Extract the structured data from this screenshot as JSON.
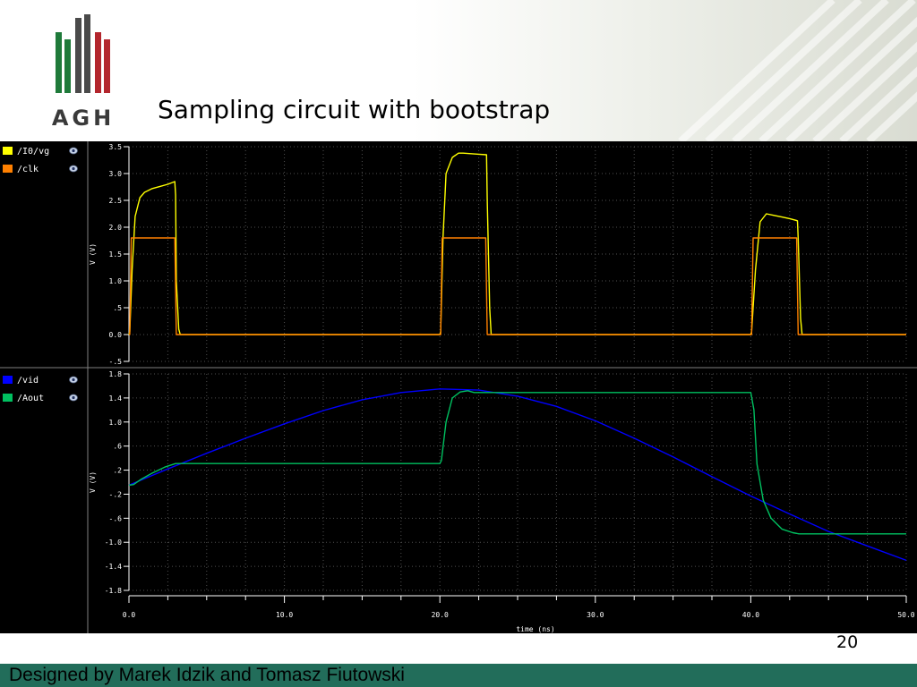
{
  "slide": {
    "title": "Sampling circuit with bootstrap",
    "logo_text": "AGH",
    "page_number": "20",
    "footer": "Designed by Marek Idzik and Tomasz Fiutowski"
  },
  "colors": {
    "logo_green": "#1f7a3a",
    "logo_gray": "#4a4a4a",
    "logo_red": "#b3262d",
    "footer": "#226d5a"
  },
  "chart_data": [
    {
      "type": "line",
      "ylabel": "V (V)",
      "ylim": [
        -0.5,
        3.5
      ],
      "yticks": [
        "3.5",
        "3.0",
        "2.5",
        "2.0",
        "1.5",
        "1.0",
        ".5",
        "0.0",
        "-.5"
      ],
      "ytick_values": [
        3.5,
        3.0,
        2.5,
        2.0,
        1.5,
        1.0,
        0.5,
        0.0,
        -0.5
      ],
      "xlim": [
        0,
        50
      ],
      "grid": true,
      "legend_placement": "left",
      "series": [
        {
          "name": "/I0/vg",
          "color": "#ffff00",
          "x": [
            0,
            0.05,
            0.2,
            0.4,
            0.7,
            1.0,
            1.5,
            2.0,
            2.5,
            2.95,
            3.0,
            3.05,
            3.2,
            3.3,
            20.0,
            20.05,
            20.2,
            20.4,
            20.8,
            21.2,
            21.5,
            22.0,
            22.5,
            23.0,
            23.05,
            23.2,
            23.3,
            40.0,
            40.05,
            40.3,
            40.6,
            41.0,
            41.5,
            42.0,
            42.5,
            43.0,
            43.05,
            43.2,
            43.3,
            50
          ],
          "y": [
            0.0,
            0.05,
            1.2,
            2.2,
            2.55,
            2.65,
            2.72,
            2.76,
            2.8,
            2.85,
            2.6,
            1.0,
            0.1,
            0.0,
            0.0,
            0.05,
            1.8,
            3.0,
            3.3,
            3.38,
            3.38,
            3.37,
            3.36,
            3.35,
            2.5,
            0.5,
            0.0,
            0.0,
            0.05,
            1.2,
            2.1,
            2.25,
            2.22,
            2.19,
            2.16,
            2.12,
            1.8,
            0.3,
            0.0,
            0.0
          ]
        },
        {
          "name": "/clk",
          "color": "#ff8000",
          "x": [
            0,
            0.05,
            0.15,
            2.95,
            3.05,
            3.15,
            20.0,
            20.05,
            20.15,
            22.95,
            23.05,
            23.15,
            40.0,
            40.05,
            40.15,
            42.95,
            43.05,
            43.15,
            50
          ],
          "y": [
            0.0,
            0.0,
            1.8,
            1.8,
            0.0,
            0.0,
            0.0,
            0.0,
            1.8,
            1.8,
            0.0,
            0.0,
            0.0,
            0.0,
            1.8,
            1.8,
            0.0,
            0.0,
            0.0
          ]
        }
      ]
    },
    {
      "type": "line",
      "ylabel": "V (V)",
      "xlabel": "time (ns)",
      "ylim": [
        -1.8,
        1.8
      ],
      "yticks": [
        "1.8",
        "1.4",
        "1.0",
        ".6",
        ".2",
        "-.2",
        "-.6",
        "-1.0",
        "-1.4",
        "-1.8"
      ],
      "ytick_values": [
        1.8,
        1.4,
        1.0,
        0.6,
        0.2,
        -0.2,
        -0.6,
        -1.0,
        -1.4,
        -1.8
      ],
      "xlim": [
        0,
        50
      ],
      "xticks": [
        "0.0",
        "10.0",
        "20.0",
        "30.0",
        "40.0",
        "50.0"
      ],
      "xtick_values": [
        0,
        10,
        20,
        30,
        40,
        50
      ],
      "grid": true,
      "legend_placement": "left",
      "series": [
        {
          "name": "/vid",
          "color": "#0000ff",
          "x": [
            0,
            2.5,
            5,
            7.5,
            10,
            12.5,
            15,
            17.5,
            20,
            22.5,
            25,
            27.5,
            30,
            32.5,
            35,
            37.5,
            40,
            42.5,
            45,
            47.5,
            50
          ],
          "y": [
            -0.05,
            0.22,
            0.48,
            0.73,
            0.97,
            1.19,
            1.37,
            1.49,
            1.55,
            1.53,
            1.43,
            1.26,
            1.02,
            0.73,
            0.42,
            0.09,
            -0.23,
            -0.53,
            -0.82,
            -1.06,
            -1.3
          ]
        },
        {
          "name": "/Aout",
          "color": "#00c060",
          "x": [
            0,
            0.3,
            0.8,
            1.5,
            2.3,
            3.0,
            3.2,
            20.0,
            20.1,
            20.4,
            20.8,
            21.3,
            21.8,
            22.2,
            40.0,
            40.2,
            40.4,
            40.8,
            41.3,
            42.0,
            42.7,
            43.1,
            50
          ],
          "y": [
            -0.05,
            -0.04,
            0.05,
            0.15,
            0.25,
            0.31,
            0.31,
            0.31,
            0.36,
            1.0,
            1.4,
            1.5,
            1.52,
            1.49,
            1.49,
            1.2,
            0.3,
            -0.3,
            -0.6,
            -0.78,
            -0.84,
            -0.86,
            -0.86
          ]
        }
      ]
    }
  ]
}
